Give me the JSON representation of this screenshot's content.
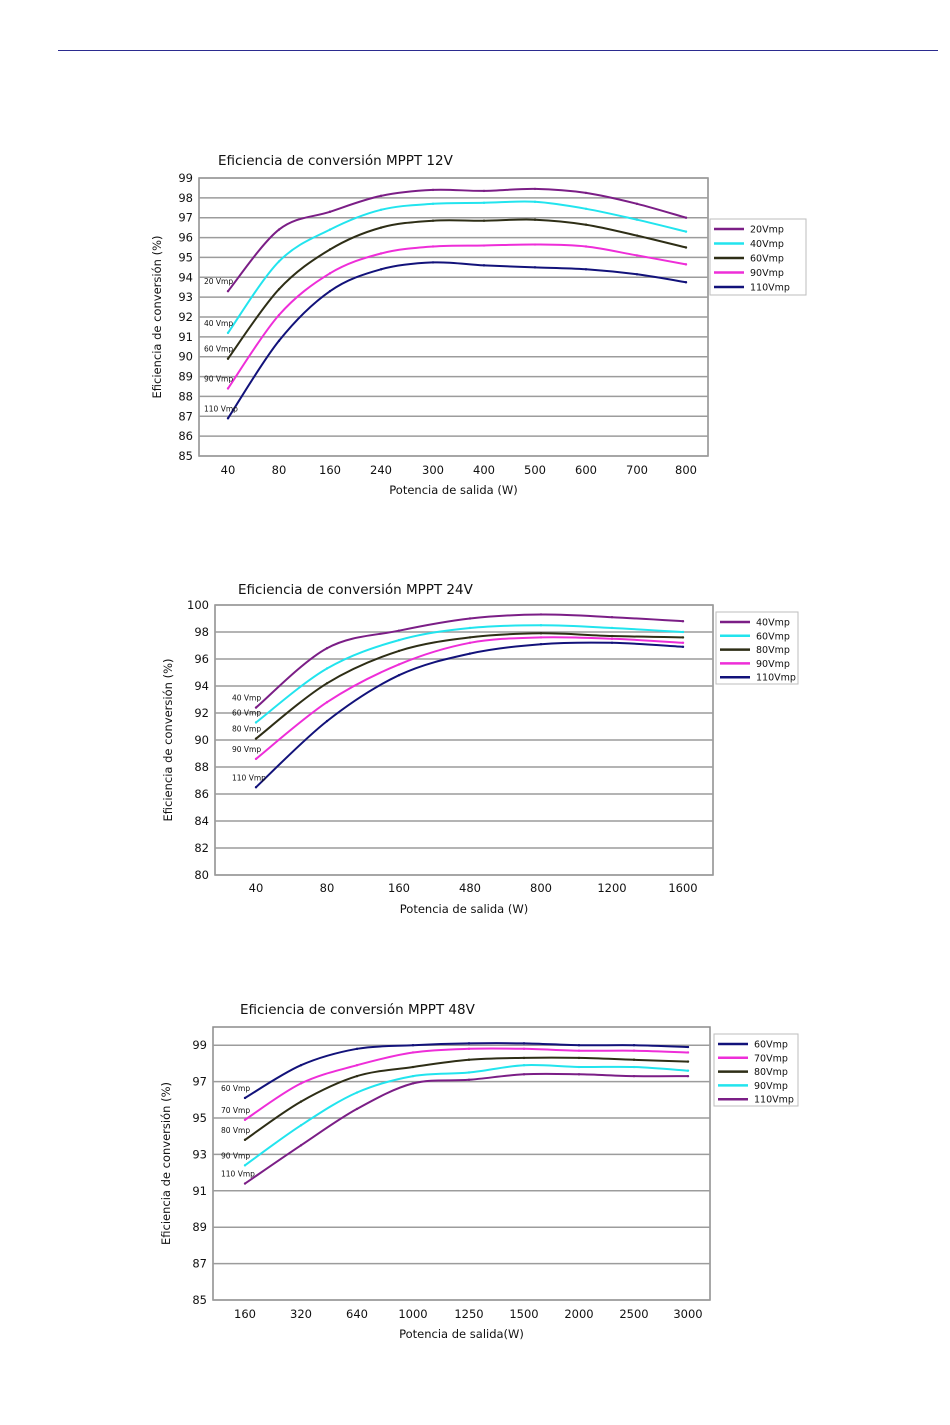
{
  "colors": {
    "header_rule": "#2b2b8f",
    "grid": "#9c9c9c",
    "plot_bg": "#ffffff"
  },
  "chart_data": [
    {
      "type": "line",
      "title": "Eficiencia de conversión MPPT 12V",
      "xlabel": "Potencia de salida (W)",
      "ylabel": "Eficiencia de conversión (%)",
      "categories": [
        "40",
        "80",
        "160",
        "240",
        "300",
        "400",
        "500",
        "600",
        "700",
        "800"
      ],
      "ylim": [
        85,
        99
      ],
      "yticks": [
        85,
        86,
        87,
        88,
        89,
        90,
        91,
        92,
        93,
        94,
        95,
        96,
        97,
        98,
        99
      ],
      "grid": "horizontal",
      "legend_position": "right",
      "series": [
        {
          "name": "20Vmp",
          "color": "#7b1e86",
          "label": "20 Vmp",
          "values": [
            93.3,
            96.4,
            97.3,
            98.1,
            98.4,
            98.35,
            98.45,
            98.25,
            97.7,
            97.0
          ]
        },
        {
          "name": "40Vmp",
          "color": "#22e4ee",
          "label": "40 Vmp",
          "values": [
            91.2,
            94.8,
            96.4,
            97.4,
            97.7,
            97.75,
            97.8,
            97.45,
            96.9,
            96.3
          ]
        },
        {
          "name": "60Vmp",
          "color": "#2e2e16",
          "label": "60 Vmp",
          "values": [
            89.9,
            93.4,
            95.4,
            96.5,
            96.85,
            96.85,
            96.9,
            96.65,
            96.1,
            95.5
          ]
        },
        {
          "name": "90Vmp",
          "color": "#ee2ed8",
          "label": "90 Vmp",
          "values": [
            88.4,
            92.1,
            94.2,
            95.2,
            95.55,
            95.6,
            95.65,
            95.55,
            95.1,
            94.65
          ]
        },
        {
          "name": "110Vmp",
          "color": "#12127a",
          "label": "110 Vmp",
          "values": [
            86.9,
            90.8,
            93.3,
            94.4,
            94.75,
            94.6,
            94.5,
            94.4,
            94.15,
            93.75
          ]
        }
      ]
    },
    {
      "type": "line",
      "title": "Eficiencia de conversión MPPT 24V",
      "xlabel": "Potencia de salida (W)",
      "ylabel": "Eficiencia de conversión (%)",
      "categories": [
        "40",
        "80",
        "160",
        "480",
        "800",
        "1200",
        "1600"
      ],
      "ylim": [
        80,
        100
      ],
      "yticks": [
        80,
        82,
        84,
        86,
        88,
        90,
        92,
        94,
        96,
        98,
        100
      ],
      "grid": "horizontal",
      "legend_position": "right",
      "series": [
        {
          "name": "40Vmp",
          "color": "#7b1e86",
          "label": "40 Vmp",
          "values": [
            92.4,
            96.8,
            98.1,
            99.0,
            99.3,
            99.1,
            98.8
          ]
        },
        {
          "name": "60Vmp",
          "color": "#22e4ee",
          "label": "60 Vmp",
          "values": [
            91.3,
            95.3,
            97.4,
            98.3,
            98.5,
            98.3,
            98.0
          ]
        },
        {
          "name": "80Vmp",
          "color": "#2e2e16",
          "label": "80 Vmp",
          "values": [
            90.1,
            94.2,
            96.6,
            97.6,
            97.9,
            97.7,
            97.6
          ]
        },
        {
          "name": "90Vmp",
          "color": "#ee2ed8",
          "label": "90 Vmp",
          "values": [
            88.6,
            92.8,
            95.6,
            97.2,
            97.6,
            97.5,
            97.2
          ]
        },
        {
          "name": "110Vmp",
          "color": "#12127a",
          "label": "110 Vmp",
          "values": [
            86.5,
            91.4,
            94.8,
            96.4,
            97.1,
            97.2,
            96.9
          ]
        }
      ]
    },
    {
      "type": "line",
      "title": "Eficiencia de conversión MPPT 48V",
      "xlabel": "Potencia de salida(W)",
      "ylabel": "Eficiencia de conversión (%)",
      "categories": [
        "160",
        "320",
        "640",
        "1000",
        "1250",
        "1500",
        "2000",
        "2500",
        "3000"
      ],
      "ylim": [
        85,
        100
      ],
      "yticks": [
        85,
        87,
        89,
        91,
        93,
        95,
        97,
        99
      ],
      "grid": "horizontal",
      "legend_position": "right",
      "series": [
        {
          "name": "60Vmp",
          "color": "#12127a",
          "label": "60 Vmp",
          "values": [
            96.1,
            97.9,
            98.8,
            99.0,
            99.1,
            99.1,
            99.0,
            99.0,
            98.9
          ]
        },
        {
          "name": "70Vmp",
          "color": "#ee2ed8",
          "label": "70 Vmp",
          "values": [
            94.9,
            96.9,
            97.9,
            98.6,
            98.8,
            98.8,
            98.7,
            98.7,
            98.6
          ]
        },
        {
          "name": "80Vmp",
          "color": "#2e2e16",
          "label": "80 Vmp",
          "values": [
            93.8,
            95.9,
            97.3,
            97.8,
            98.2,
            98.3,
            98.3,
            98.2,
            98.1
          ]
        },
        {
          "name": "90Vmp",
          "color": "#22e4ee",
          "label": "90 Vmp",
          "values": [
            92.4,
            94.6,
            96.4,
            97.3,
            97.5,
            97.9,
            97.8,
            97.8,
            97.6
          ]
        },
        {
          "name": "110Vmp",
          "color": "#7b1e86",
          "label": "110 Vmp",
          "values": [
            91.4,
            93.5,
            95.5,
            96.9,
            97.1,
            97.4,
            97.4,
            97.3,
            97.3
          ]
        }
      ]
    }
  ]
}
